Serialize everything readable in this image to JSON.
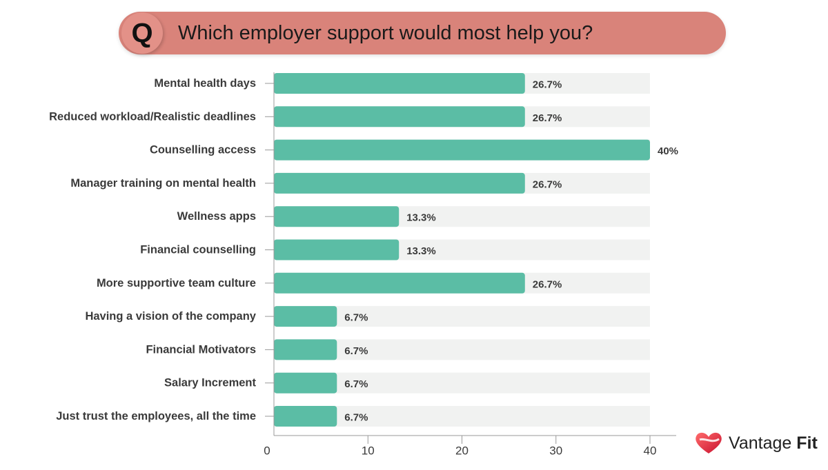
{
  "header": {
    "badge": "Q",
    "question": "Which employer support would most help you?"
  },
  "brand": {
    "name": "Vantage",
    "name_bold": "Fit",
    "icon": "heart-logo-icon"
  },
  "colors": {
    "bar": "#5bbda5",
    "track": "#f1f2f1",
    "header": "#d9837a",
    "badge": "#e39188",
    "axis": "#999999"
  },
  "chart_data": {
    "type": "bar",
    "orientation": "horizontal",
    "title": "Which employer support would most help you?",
    "categories": [
      "Mental health days",
      "Reduced workload/Realistic deadlines",
      "Counselling access",
      "Manager training on mental health",
      "Wellness apps",
      "Financial counselling",
      "More supportive team culture",
      "Having a vision of the company",
      "Financial Motivators",
      "Salary Increment",
      "Just trust the employees, all the time"
    ],
    "values": [
      26.7,
      26.7,
      40,
      26.7,
      13.3,
      13.3,
      26.7,
      6.7,
      6.7,
      6.7,
      6.7
    ],
    "value_labels": [
      "26.7%",
      "26.7%",
      "40%",
      "26.7%",
      "13.3%",
      "13.3%",
      "26.7%",
      "6.7%",
      "6.7%",
      "6.7%",
      "6.7%"
    ],
    "xlim": [
      0,
      40
    ],
    "xticks": [
      "0",
      "10",
      "20",
      "30",
      "40"
    ],
    "xlabel": "",
    "ylabel": "",
    "grid": false,
    "legend": "none"
  }
}
